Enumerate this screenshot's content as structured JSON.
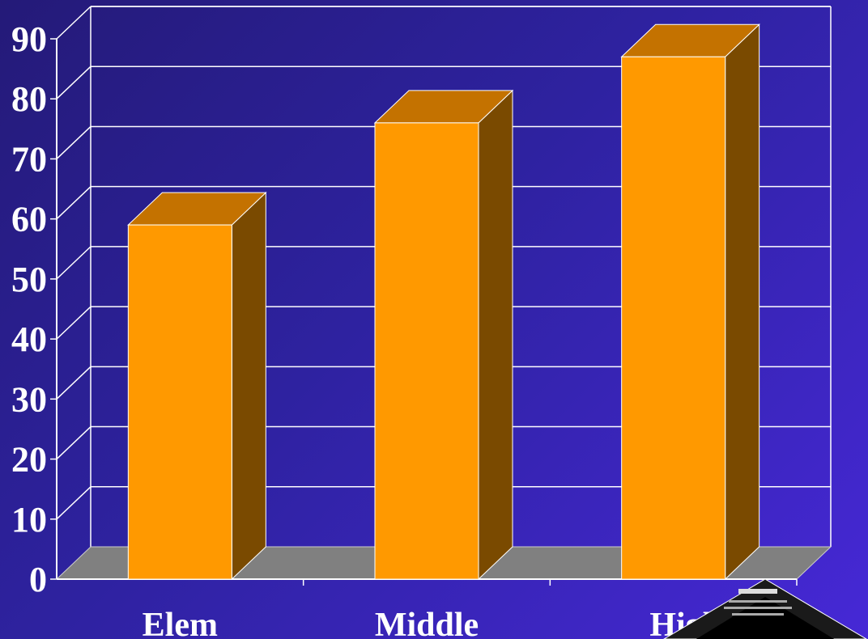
{
  "chart_data": {
    "type": "bar",
    "style": "3d-column",
    "categories": [
      "Elem",
      "Middle",
      "High"
    ],
    "values": [
      59,
      76,
      87
    ],
    "ylim": [
      0,
      90
    ],
    "yticks": [
      0,
      10,
      20,
      30,
      40,
      50,
      60,
      70,
      80,
      90
    ],
    "title": "",
    "xlabel": "",
    "ylabel": "",
    "grid": true,
    "colors": {
      "bar_front": "#ff9900",
      "bar_top": "#c47200",
      "bar_side": "#7a4a00",
      "floor": "#808080",
      "grid": "#ffffff",
      "text": "#ffffff"
    }
  }
}
